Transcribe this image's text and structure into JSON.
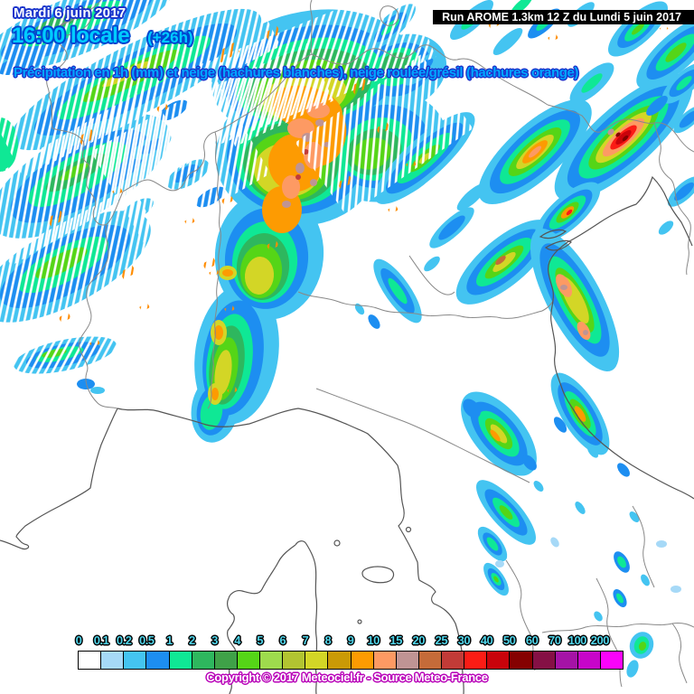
{
  "header": {
    "date": "Mardi 6 juin 2017",
    "time": "16:00 locale",
    "time_offset": "(+26h)",
    "run_info": "Run AROME 1.3km 12 Z du Lundi 5 juin 2017",
    "subtitle": "Précipitation en 1h (mm) et neige (hachures blanches), neige roulée/grésil (hachures orange)"
  },
  "legend": {
    "unit": "mm",
    "values": [
      "0",
      "0.1",
      "0.2",
      "0.5",
      "1",
      "2",
      "3",
      "4",
      "5",
      "6",
      "7",
      "8",
      "9",
      "10",
      "15",
      "20",
      "25",
      "30",
      "40",
      "50",
      "60",
      "70",
      "100",
      "200"
    ],
    "colors": [
      "#ffffff",
      "#a6d9f7",
      "#44c4f1",
      "#1d8ef1",
      "#0fe895",
      "#2eb75e",
      "#3fa148",
      "#55d517",
      "#9edb4d",
      "#b2c431",
      "#d3d626",
      "#ca9a06",
      "#fd9b02",
      "#fd9a63",
      "#bf9494",
      "#c56b39",
      "#c23b37",
      "#fb1c15",
      "#c9030b",
      "#850101",
      "#851045",
      "#a513a6",
      "#c705c9",
      "#fb03fb"
    ]
  },
  "map": {
    "snow_hatch_color": "#ffffff",
    "graupel_hatch_color": "#ff8c00",
    "border_color": "#888888",
    "coast_color": "#555555"
  },
  "footer": {
    "copyright": "Copyright © 2017 Meteociel.fr - Source Meteo-France"
  }
}
